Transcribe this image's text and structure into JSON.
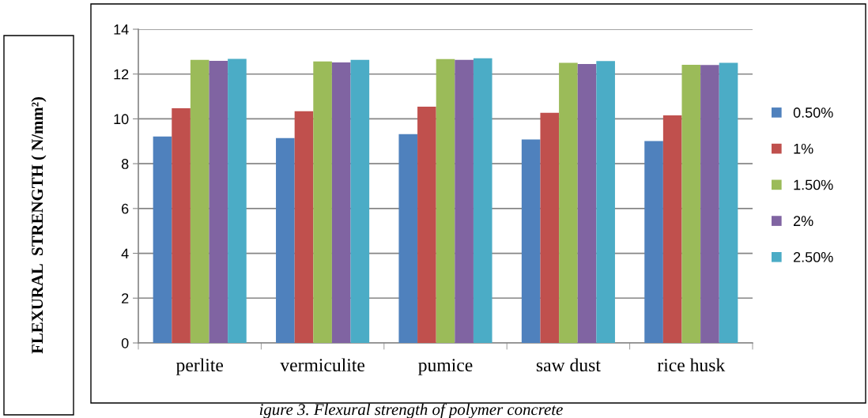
{
  "chart_data": {
    "type": "bar",
    "ylabel": "FLEXURAL  STRENGTH ( N/mm²)",
    "categories": [
      "perlite",
      "vermiculite",
      "pumice",
      "saw dust",
      "rice husk"
    ],
    "series": [
      {
        "name": "0.50%",
        "color": "#4f81bd",
        "values": [
          9.21,
          9.14,
          9.32,
          9.08,
          9.01
        ]
      },
      {
        "name": "1%",
        "color": "#c0504d",
        "values": [
          10.47,
          10.34,
          10.54,
          10.27,
          10.16
        ]
      },
      {
        "name": "1.50%",
        "color": "#9bbb59",
        "values": [
          12.63,
          12.56,
          12.67,
          12.5,
          12.41
        ]
      },
      {
        "name": "2%",
        "color": "#8064a2",
        "values": [
          12.59,
          12.52,
          12.63,
          12.45,
          12.4
        ]
      },
      {
        "name": "2.50%",
        "color": "#4bacc6",
        "values": [
          12.68,
          12.63,
          12.7,
          12.58,
          12.5
        ]
      }
    ],
    "ylim": [
      0,
      14
    ],
    "yticks": [
      0,
      2,
      4,
      6,
      8,
      10,
      12,
      14
    ],
    "grid": "y",
    "legend": "right",
    "annotations": [
      "igure 3. Flexural strength of polymer concrete"
    ]
  }
}
